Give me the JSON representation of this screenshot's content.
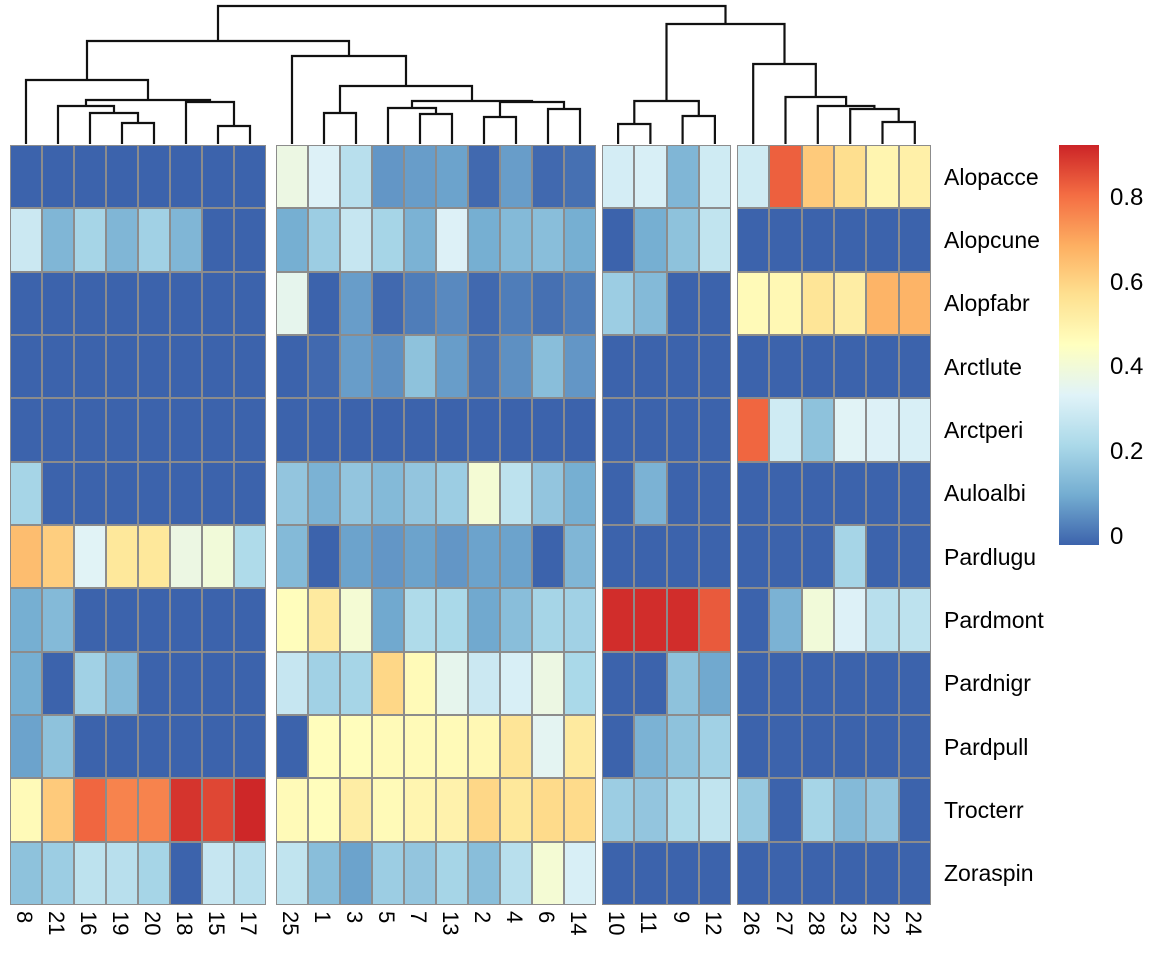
{
  "chart_data": {
    "type": "heatmap",
    "title": "",
    "rows": [
      "Alopacce",
      "Alopcune",
      "Alopfabr",
      "Arctlute",
      "Arctperi",
      "Auloalbi",
      "Pardlugu",
      "Pardmont",
      "Pardnigr",
      "Pardpull",
      "Trocterr",
      "Zoraspin"
    ],
    "col_groups": [
      [
        "8",
        "21",
        "16",
        "19",
        "20",
        "18",
        "15",
        "17"
      ],
      [
        "25",
        "1",
        "3",
        "5",
        "7",
        "13",
        "2",
        "4",
        "6",
        "14"
      ],
      [
        "10",
        "11",
        "9",
        "12"
      ],
      [
        "26",
        "27",
        "28",
        "23",
        "22",
        "24"
      ]
    ],
    "matrix": [
      [
        0,
        0,
        0,
        0,
        0,
        0,
        0,
        0,
        0.39,
        0.34,
        0.26,
        0.08,
        0.09,
        0.1,
        0.01,
        0.09,
        0.01,
        0.02,
        0.32,
        0.33,
        0.14,
        0.31,
        0.31,
        0.83,
        0.63,
        0.58,
        0.5,
        0.52
      ],
      [
        0.3,
        0.14,
        0.22,
        0.14,
        0.21,
        0.14,
        0,
        0,
        0.12,
        0.2,
        0.29,
        0.22,
        0.13,
        0.34,
        0.12,
        0.15,
        0.16,
        0.12,
        0,
        0.12,
        0.17,
        0.28,
        0,
        0,
        0,
        0,
        0,
        0
      ],
      [
        0,
        0,
        0,
        0,
        0,
        0,
        0,
        0,
        0.37,
        0,
        0.09,
        0.01,
        0.04,
        0.06,
        0.01,
        0.04,
        0.02,
        0.04,
        0.2,
        0.15,
        0,
        0,
        0.48,
        0.49,
        0.56,
        0.53,
        0.68,
        0.68
      ],
      [
        0,
        0,
        0,
        0,
        0,
        0,
        0,
        0,
        0,
        0.01,
        0.09,
        0.07,
        0.17,
        0.09,
        0.02,
        0.07,
        0.16,
        0.08,
        0,
        0,
        0,
        0,
        0,
        0,
        0,
        0,
        0,
        0
      ],
      [
        0,
        0,
        0,
        0,
        0,
        0,
        0,
        0,
        0,
        0,
        0,
        0,
        0,
        0,
        0,
        0,
        0,
        0,
        0,
        0,
        0,
        0,
        0.82,
        0.31,
        0.17,
        0.35,
        0.34,
        0.33
      ],
      [
        0.22,
        0,
        0,
        0,
        0,
        0,
        0,
        0,
        0.18,
        0.13,
        0.18,
        0.15,
        0.18,
        0.2,
        0.42,
        0.27,
        0.18,
        0.12,
        0,
        0.13,
        0,
        0,
        0,
        0,
        0,
        0,
        0,
        0
      ],
      [
        0.66,
        0.62,
        0.35,
        0.55,
        0.55,
        0.39,
        0.41,
        0.24,
        0.15,
        0,
        0.1,
        0.08,
        0.1,
        0.08,
        0.1,
        0.1,
        0,
        0.14,
        0,
        0,
        0,
        0,
        0,
        0,
        0,
        0.22,
        0,
        0
      ],
      [
        0.12,
        0.15,
        0,
        0,
        0,
        0,
        0,
        0,
        0.47,
        0.54,
        0.42,
        0.11,
        0.24,
        0.23,
        0.11,
        0.16,
        0.22,
        0.21,
        0.91,
        0.91,
        0.91,
        0.84,
        0,
        0.13,
        0.41,
        0.34,
        0.26,
        0.27
      ],
      [
        0.12,
        0,
        0.21,
        0.15,
        0,
        0,
        0,
        0,
        0.29,
        0.21,
        0.22,
        0.6,
        0.48,
        0.37,
        0.3,
        0.33,
        0.39,
        0.23,
        0,
        0,
        0.17,
        0.11,
        0,
        0,
        0,
        0,
        0,
        0
      ],
      [
        0.1,
        0.17,
        0,
        0,
        0,
        0,
        0,
        0,
        0,
        0.47,
        0.47,
        0.48,
        0.48,
        0.48,
        0.49,
        0.56,
        0.36,
        0.54,
        0,
        0.13,
        0.17,
        0.21,
        0,
        0,
        0,
        0,
        0,
        0
      ],
      [
        0.48,
        0.63,
        0.82,
        0.77,
        0.77,
        0.9,
        0.87,
        0.92,
        0.48,
        0.47,
        0.53,
        0.48,
        0.5,
        0.51,
        0.6,
        0.55,
        0.59,
        0.59,
        0.2,
        0.18,
        0.24,
        0.28,
        0.19,
        0,
        0.22,
        0.15,
        0.18,
        0
      ],
      [
        0.17,
        0.2,
        0.27,
        0.26,
        0.22,
        0,
        0.29,
        0.26,
        0.28,
        0.16,
        0.1,
        0.2,
        0.18,
        0.22,
        0.16,
        0.26,
        0.42,
        0.33,
        0,
        0,
        0,
        0,
        0,
        0,
        0,
        0,
        0,
        0
      ]
    ],
    "vmax": 0.925,
    "colormap_stops": [
      "#3C63AC",
      "#74ADD1",
      "#ABD9E9",
      "#E0F3F8",
      "#FFFFBF",
      "#FEE090",
      "#FDAE61",
      "#F46D43",
      "#CC2427"
    ],
    "legend": {
      "position": "right",
      "tick_values": [
        0,
        0.2,
        0.4,
        0.6,
        0.8
      ],
      "tick_labels": [
        "0",
        "0.2",
        "0.4",
        "0.6",
        "0.8"
      ]
    },
    "column_dendrogram": [
      138,
      [
        103,
        [
          64,
          "8",
          [
            44,
            [
              38,
              "21",
              [
                31,
                "16",
                [
                  21,
                  "19",
                  "20"
                ]
              ]
            ],
            [
              42,
              "18",
              [
                18,
                "15",
                "17"
              ]
            ]
          ]
        ],
        [
          88,
          "25",
          [
            58,
            [
              31,
              "1",
              "3"
            ],
            [
              43,
              [
                36,
                "5",
                [
                  30,
                  "7",
                  "13"
                ]
              ],
              [
                42,
                [
                  27,
                  "2",
                  "4"
                ],
                [
                  35,
                  "6",
                  "14"
                ]
              ]
            ]
          ]
        ]
      ],
      [
        120,
        [
          43,
          [
            20,
            "10",
            "11"
          ],
          [
            28,
            "9",
            "12"
          ]
        ],
        [
          80,
          "26",
          [
            47,
            "27",
            [
              38,
              "28",
              [
                35,
                "23",
                [
                  22,
                  "22",
                  "24"
                ]
              ]
            ]
          ]
        ]
      ]
    ],
    "grid": true,
    "xlabel": "",
    "ylabel": ""
  }
}
